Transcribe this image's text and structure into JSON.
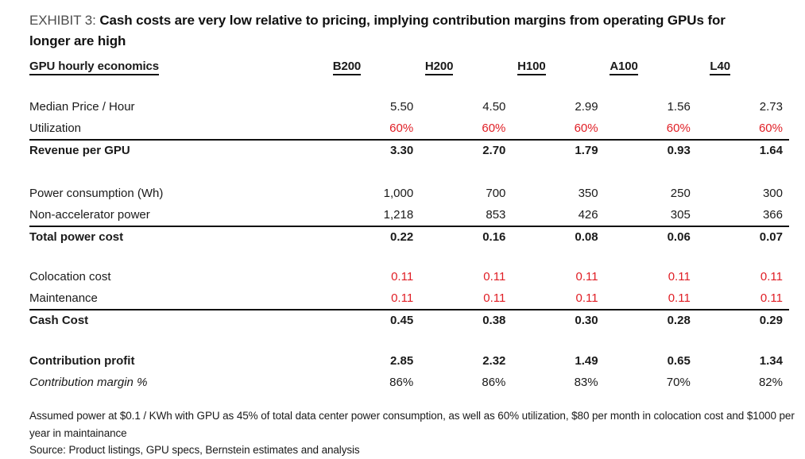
{
  "exhibit": {
    "label": "EXHIBIT 3: ",
    "title": "Cash costs are very low relative to pricing, implying contribution margins from operating GPUs for longer are high"
  },
  "table": {
    "header": {
      "label": "GPU hourly economics",
      "columns": [
        "B200",
        "H200",
        "H100",
        "A100",
        "L40"
      ]
    },
    "rows": [
      {
        "label": "Median Price / Hour",
        "values": [
          "5.50",
          "4.50",
          "2.99",
          "1.56",
          "2.73"
        ]
      },
      {
        "label": "Utilization",
        "values": [
          "60%",
          "60%",
          "60%",
          "60%",
          "60%"
        ]
      },
      {
        "label": "Revenue per GPU",
        "values": [
          "3.30",
          "2.70",
          "1.79",
          "0.93",
          "1.64"
        ]
      },
      {
        "label": "Power consumption (Wh)",
        "values": [
          "1,000",
          "700",
          "350",
          "250",
          "300"
        ]
      },
      {
        "label": "Non-accelerator power",
        "values": [
          "1,218",
          "853",
          "426",
          "305",
          "366"
        ]
      },
      {
        "label": "Total power cost",
        "values": [
          "0.22",
          "0.16",
          "0.08",
          "0.06",
          "0.07"
        ]
      },
      {
        "label": "Colocation cost",
        "values": [
          "0.11",
          "0.11",
          "0.11",
          "0.11",
          "0.11"
        ]
      },
      {
        "label": "Maintenance",
        "values": [
          "0.11",
          "0.11",
          "0.11",
          "0.11",
          "0.11"
        ]
      },
      {
        "label": "Cash Cost",
        "values": [
          "0.45",
          "0.38",
          "0.30",
          "0.28",
          "0.29"
        ]
      },
      {
        "label": "Contribution profit",
        "values": [
          "2.85",
          "2.32",
          "1.49",
          "0.65",
          "1.34"
        ]
      },
      {
        "label": "Contribution margin %",
        "values": [
          "86%",
          "86%",
          "83%",
          "70%",
          "82%"
        ]
      }
    ]
  },
  "footnotes": {
    "assumption": "Assumed power at $0.1 / KWh with GPU as 45% of total data center power consumption, as well as 60% utilization, $80 per month in colocation cost and $1000 per year in maintainance",
    "source": "Source: Product listings, GPU specs, Bernstein estimates and analysis"
  },
  "colors": {
    "accent_red": "#e01e25",
    "text": "#1a1a1a",
    "exhibit_label_gray": "#4d4d4d"
  },
  "chart_data": {
    "type": "table",
    "title": "GPU hourly economics",
    "columns": [
      "B200",
      "H200",
      "H100",
      "A100",
      "L40"
    ],
    "rows": [
      {
        "label": "Median Price / Hour",
        "values": [
          5.5,
          4.5,
          2.99,
          1.56,
          2.73
        ]
      },
      {
        "label": "Utilization",
        "values": [
          "60%",
          "60%",
          "60%",
          "60%",
          "60%"
        ]
      },
      {
        "label": "Revenue per GPU",
        "values": [
          3.3,
          2.7,
          1.79,
          0.93,
          1.64
        ]
      },
      {
        "label": "Power consumption (Wh)",
        "values": [
          1000,
          700,
          350,
          250,
          300
        ]
      },
      {
        "label": "Non-accelerator power",
        "values": [
          1218,
          853,
          426,
          305,
          366
        ]
      },
      {
        "label": "Total power cost",
        "values": [
          0.22,
          0.16,
          0.08,
          0.06,
          0.07
        ]
      },
      {
        "label": "Colocation cost",
        "values": [
          0.11,
          0.11,
          0.11,
          0.11,
          0.11
        ]
      },
      {
        "label": "Maintenance",
        "values": [
          0.11,
          0.11,
          0.11,
          0.11,
          0.11
        ]
      },
      {
        "label": "Cash Cost",
        "values": [
          0.45,
          0.38,
          0.3,
          0.28,
          0.29
        ]
      },
      {
        "label": "Contribution profit",
        "values": [
          2.85,
          2.32,
          1.49,
          0.65,
          1.34
        ]
      },
      {
        "label": "Contribution margin %",
        "values": [
          "86%",
          "86%",
          "83%",
          "70%",
          "82%"
        ]
      }
    ]
  }
}
